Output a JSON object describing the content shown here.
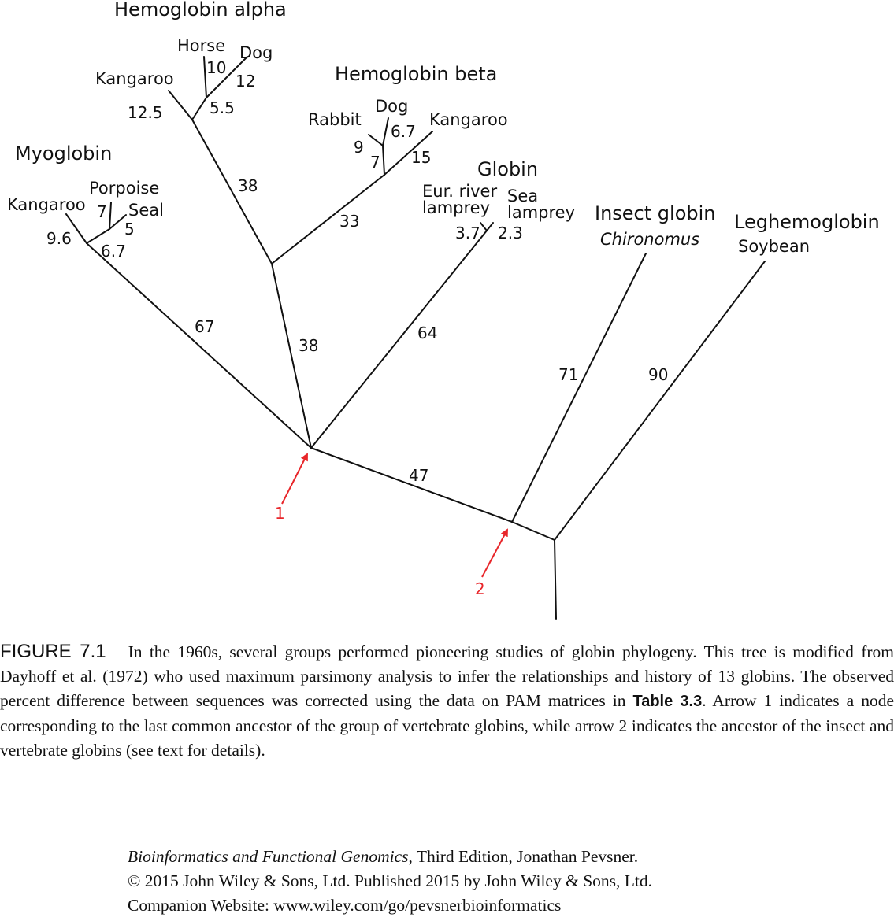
{
  "groups": {
    "hemoglobin_alpha": "Hemoglobin alpha",
    "hemoglobin_beta": "Hemoglobin beta",
    "myoglobin": "Myoglobin",
    "globin": "Globin",
    "insect_globin": "Insect globin",
    "leghemoglobin": "Leghemoglobin"
  },
  "species": {
    "alpha_horse": "Horse",
    "alpha_dog": "Dog",
    "alpha_kangaroo": "Kangaroo",
    "beta_rabbit": "Rabbit",
    "beta_dog": "Dog",
    "beta_kangaroo": "Kangaroo",
    "myo_kangaroo": "Kangaroo",
    "myo_porpoise": "Porpoise",
    "myo_seal": "Seal",
    "eur_river_1": "Eur. river",
    "eur_river_2": "lamprey",
    "sea_lamprey_1": "Sea",
    "sea_lamprey_2": "lamprey",
    "chironomus": "Chironomus",
    "soybean": "Soybean"
  },
  "branch_lengths": {
    "alpha_horse": "10",
    "alpha_dog": "12",
    "alpha_inner": "5.5",
    "alpha_kangaroo": "12.5",
    "alpha_stem": "38",
    "beta_rabbit": "9",
    "beta_dog": "6.7",
    "beta_inner": "7",
    "beta_kangaroo": "15",
    "beta_stem": "33",
    "hb_stem": "38",
    "myo_porpoise": "7",
    "myo_seal": "5",
    "myo_kangaroo": "9.6",
    "myo_inner": "6.7",
    "myo_stem": "67",
    "eur_lamprey": "3.7",
    "sea_lamprey": "2.3",
    "globin_stem": "64",
    "vert_to_insect": "47",
    "insect_stem": "71",
    "leghemoglobin_stem": "90"
  },
  "arrows": {
    "arrow1": "1",
    "arrow2": "2"
  },
  "caption": {
    "label": "FIGURE 7.1",
    "text_before": "In the 1960s, several groups performed pioneering studies of globin phylogeny. This tree is modified from Dayhoff et al. (1972) who used maximum parsimony analysis to infer the relationships and history of 13 globins. The observed percent difference between sequences was corrected using the data on PAM matrices in",
    "table_ref": "Table 3.3",
    "text_after": ". Arrow 1 indicates a node corresponding to the last common ancestor of the group of vertebrate globins, while arrow 2 indicates the ancestor of the insect and vertebrate globins (see text for details)."
  },
  "citation": {
    "book_title": "Bioinformatics and Functional Genomics",
    "line1_rest": ", Third Edition, Jonathan Pevsner.",
    "line2": "© 2015 John Wiley & Sons, Ltd. Published 2015 by John Wiley & Sons, Ltd.",
    "line3": "Companion Website: www.wiley.com/go/pevsnerbioinformatics"
  },
  "colors": {
    "arrow": "#e8262a",
    "line": "#111111"
  }
}
